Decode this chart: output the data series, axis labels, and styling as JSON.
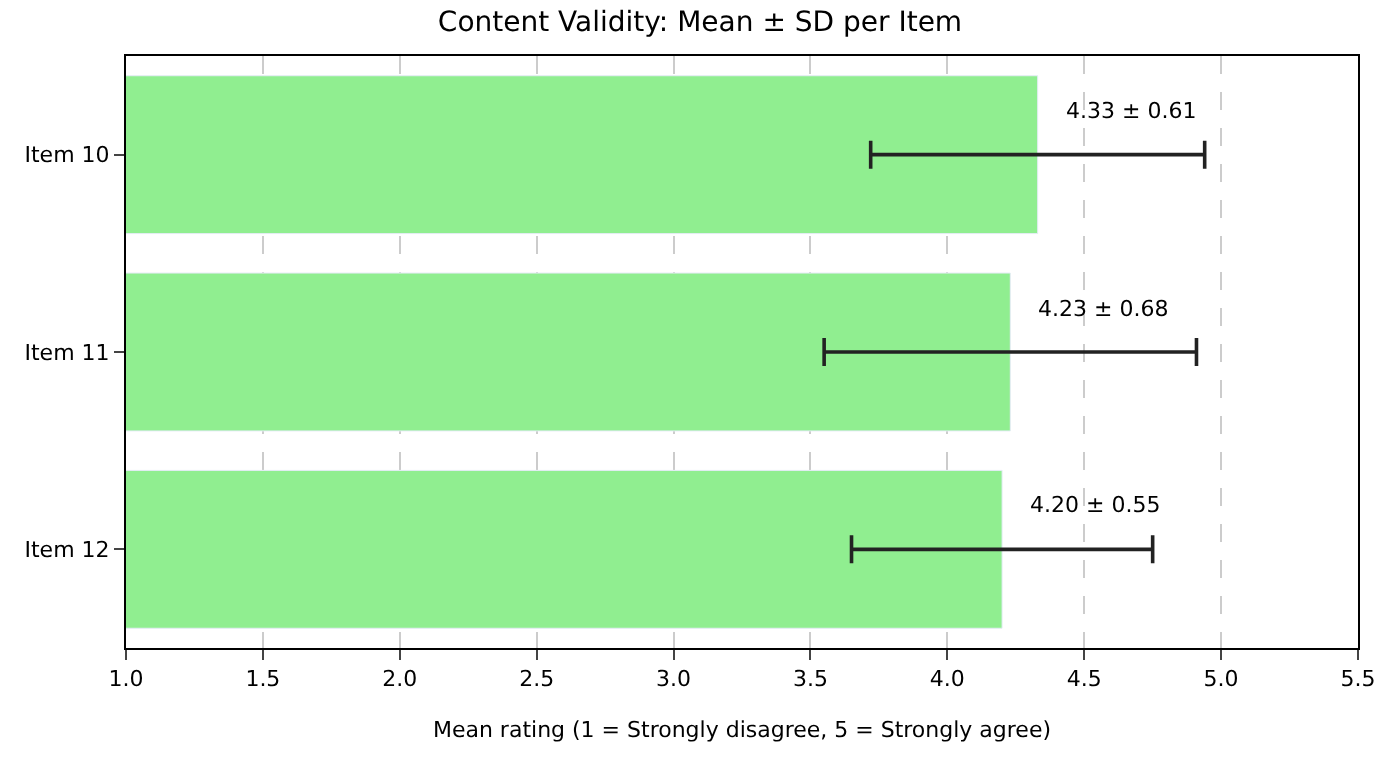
{
  "chart_data": {
    "type": "bar",
    "orientation": "horizontal",
    "title": "Content Validity: Mean ± SD per Item",
    "xlabel": "Mean rating (1 = Strongly disagree, 5 = Strongly agree)",
    "categories": [
      "Item 10",
      "Item 11",
      "Item 12"
    ],
    "values": [
      4.33,
      4.23,
      4.2
    ],
    "errors": [
      0.61,
      0.68,
      0.55
    ],
    "value_labels": [
      "4.33 ± 0.61",
      "4.23 ± 0.68",
      "4.20 ± 0.55"
    ],
    "color": "#90ee90",
    "xlim": [
      1.0,
      5.5
    ],
    "xticks": [
      {
        "value": 1.0,
        "label": "1.0"
      },
      {
        "value": 1.5,
        "label": "1.5"
      },
      {
        "value": 2.0,
        "label": "2.0"
      },
      {
        "value": 2.5,
        "label": "2.5"
      },
      {
        "value": 3.0,
        "label": "3.0"
      },
      {
        "value": 3.5,
        "label": "3.5"
      },
      {
        "value": 4.0,
        "label": "4.0"
      },
      {
        "value": 4.5,
        "label": "4.5"
      },
      {
        "value": 5.0,
        "label": "5.0"
      },
      {
        "value": 5.5,
        "label": "5.5"
      }
    ],
    "grid": "x"
  }
}
